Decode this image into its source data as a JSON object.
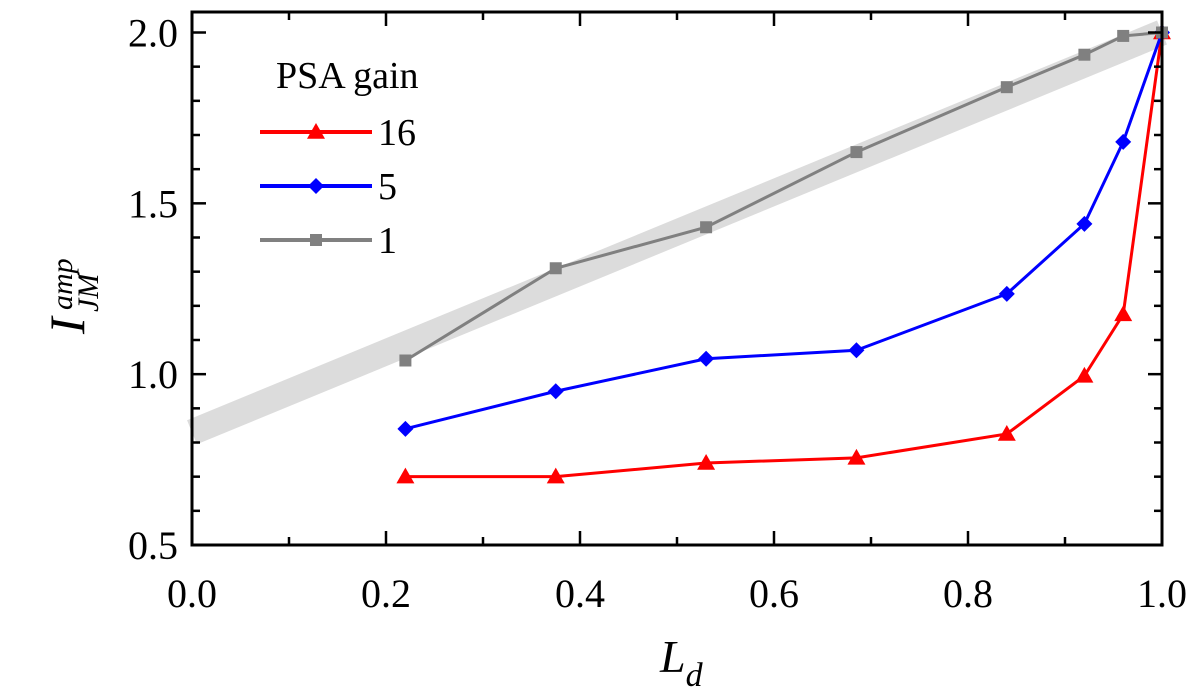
{
  "chart_data": {
    "type": "line",
    "xlabel": {
      "main": "L",
      "sub": "d"
    },
    "ylabel": {
      "main": "I",
      "sup": "amp",
      "sub": "JM"
    },
    "xlim": [
      0.0,
      1.0
    ],
    "ylim": [
      0.5,
      2.06
    ],
    "x_major_ticks": [
      0.0,
      0.2,
      0.4,
      0.6,
      0.8,
      1.0
    ],
    "x_tick_labels": [
      "0.0",
      "0.2",
      "0.4",
      "0.6",
      "0.8",
      "1.0"
    ],
    "y_major_ticks": [
      0.5,
      1.0,
      1.5,
      2.0
    ],
    "y_tick_labels": [
      "0.5",
      "1.0",
      "1.5",
      "2.0"
    ],
    "x_minor_step": 0.1,
    "y_minor_step": 0.1,
    "grid": false,
    "legend": {
      "title": "PSA gain",
      "placement": "top-left"
    },
    "reference_band": {
      "color": "#dcdcdc",
      "from": [
        0.0,
        0.83
      ],
      "to": [
        1.0,
        2.0
      ]
    },
    "series": [
      {
        "name": "16",
        "color": "#ff0000",
        "marker": "triangle",
        "x": [
          0.22,
          0.375,
          0.53,
          0.685,
          0.84,
          0.92,
          0.96,
          1.0
        ],
        "y": [
          0.7,
          0.7,
          0.74,
          0.755,
          0.825,
          0.995,
          1.175,
          2.0
        ]
      },
      {
        "name": "5",
        "color": "#0000ff",
        "marker": "diamond",
        "x": [
          0.22,
          0.375,
          0.53,
          0.685,
          0.84,
          0.92,
          0.96,
          1.0
        ],
        "y": [
          0.84,
          0.95,
          1.045,
          1.07,
          1.235,
          1.44,
          1.68,
          2.0
        ]
      },
      {
        "name": "1",
        "color": "#808080",
        "marker": "square",
        "x": [
          0.22,
          0.375,
          0.53,
          0.685,
          0.84,
          0.92,
          0.96,
          1.0
        ],
        "y": [
          1.04,
          1.31,
          1.43,
          1.65,
          1.84,
          1.935,
          1.99,
          2.0
        ]
      }
    ]
  }
}
